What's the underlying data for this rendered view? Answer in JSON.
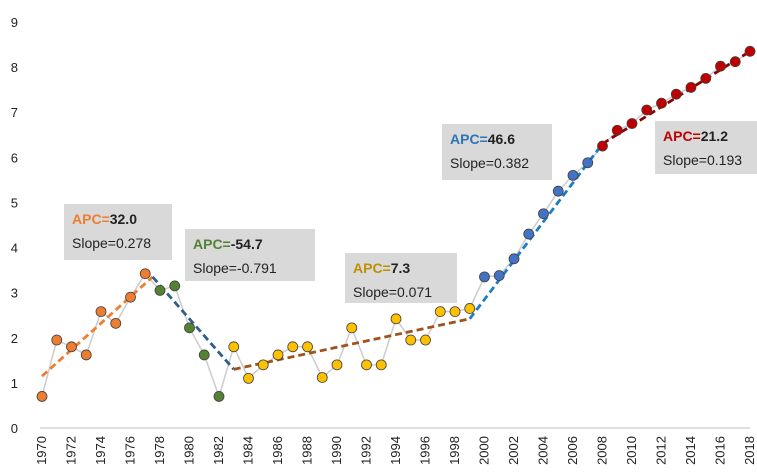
{
  "chart_data": {
    "type": "line",
    "title": "",
    "xlabel": "",
    "ylabel": "",
    "ylim": [
      0,
      9
    ],
    "yticks": [
      0,
      1,
      2,
      3,
      4,
      5,
      6,
      7,
      8,
      9
    ],
    "xlim": [
      1970,
      2018
    ],
    "xticks": [
      1970,
      1972,
      1974,
      1976,
      1978,
      1980,
      1982,
      1984,
      1986,
      1988,
      1990,
      1992,
      1994,
      1996,
      1998,
      2000,
      2002,
      2004,
      2006,
      2008,
      2010,
      2012,
      2014,
      2016,
      2018
    ],
    "grid": false,
    "observed": {
      "x": [
        1970,
        1971,
        1972,
        1973,
        1974,
        1975,
        1976,
        1977,
        1978,
        1979,
        1980,
        1981,
        1982,
        1983,
        1984,
        1985,
        1986,
        1987,
        1988,
        1989,
        1990,
        1991,
        1992,
        1993,
        1994,
        1995,
        1996,
        1997,
        1998,
        1999,
        2000,
        2001,
        2002,
        2003,
        2004,
        2005,
        2006,
        2007,
        2008,
        2009,
        2010,
        2011,
        2012,
        2013,
        2014,
        2015,
        2016,
        2017,
        2018
      ],
      "y": [
        0.7,
        1.95,
        1.8,
        1.62,
        2.58,
        2.32,
        2.9,
        3.42,
        3.05,
        3.15,
        2.22,
        1.62,
        0.7,
        1.8,
        1.1,
        1.4,
        1.62,
        1.8,
        1.8,
        1.12,
        1.4,
        2.22,
        1.4,
        1.4,
        2.42,
        1.95,
        1.95,
        2.58,
        2.58,
        2.65,
        3.35,
        3.38,
        3.75,
        4.3,
        4.75,
        5.25,
        5.6,
        5.88,
        6.25,
        6.6,
        6.75,
        7.05,
        7.2,
        7.4,
        7.55,
        7.75,
        8.02,
        8.12,
        8.35
      ],
      "line_color": "#cccccc"
    },
    "segments": [
      {
        "x": [
          1970,
          1971,
          1972,
          1973,
          1974,
          1975,
          1976,
          1977
        ],
        "color": "#ED7D31",
        "fit": {
          "x": [
            1970,
            1977.5
          ],
          "y": [
            1.15,
            3.35
          ]
        }
      },
      {
        "x": [
          1978,
          1979,
          1980,
          1981,
          1982
        ],
        "color": "#548235",
        "fit": {
          "x": [
            1977.5,
            1983
          ],
          "y": [
            3.35,
            1.3
          ]
        }
      },
      {
        "x": [
          1983,
          1984,
          1985,
          1986,
          1987,
          1988,
          1989,
          1990,
          1991,
          1992,
          1993,
          1994,
          1995,
          1996,
          1997,
          1998,
          1999
        ],
        "color": "#FFC000",
        "fit": {
          "x": [
            1983,
            1999
          ],
          "y": [
            1.3,
            2.42
          ]
        }
      },
      {
        "x": [
          2000,
          2001,
          2002,
          2003,
          2004,
          2005,
          2006,
          2007
        ],
        "color": "#4472C4",
        "fit": {
          "x": [
            1999,
            2008
          ],
          "y": [
            2.42,
            6.3
          ]
        }
      },
      {
        "x": [
          2008,
          2009,
          2010,
          2011,
          2012,
          2013,
          2014,
          2015,
          2016,
          2017,
          2018
        ],
        "color": "#C00000",
        "fit": {
          "x": [
            2008,
            2018
          ],
          "y": [
            6.3,
            8.35
          ]
        }
      }
    ],
    "fit_line_colors": [
      "#ED7D31",
      "#2E5F8A",
      "#A0521D",
      "#1F7BC2",
      "#8B0000"
    ],
    "annotations": [
      {
        "apc_label": "APC=",
        "apc_value": "32.0",
        "slope": "Slope=0.278",
        "color": "#ED7D31"
      },
      {
        "apc_label": "APC=",
        "apc_value": "-54.7",
        "slope": "Slope=-0.791",
        "color": "#548235"
      },
      {
        "apc_label": "APC=",
        "apc_value": "7.3",
        "slope": "Slope=0.071",
        "color": "#BF9000"
      },
      {
        "apc_label": "APC=",
        "apc_value": "46.6",
        "slope": "Slope=0.382",
        "color": "#2E75B6"
      },
      {
        "apc_label": "APC=",
        "apc_value": "21.2",
        "slope": "Slope=0.193",
        "color": "#C00000"
      }
    ]
  }
}
